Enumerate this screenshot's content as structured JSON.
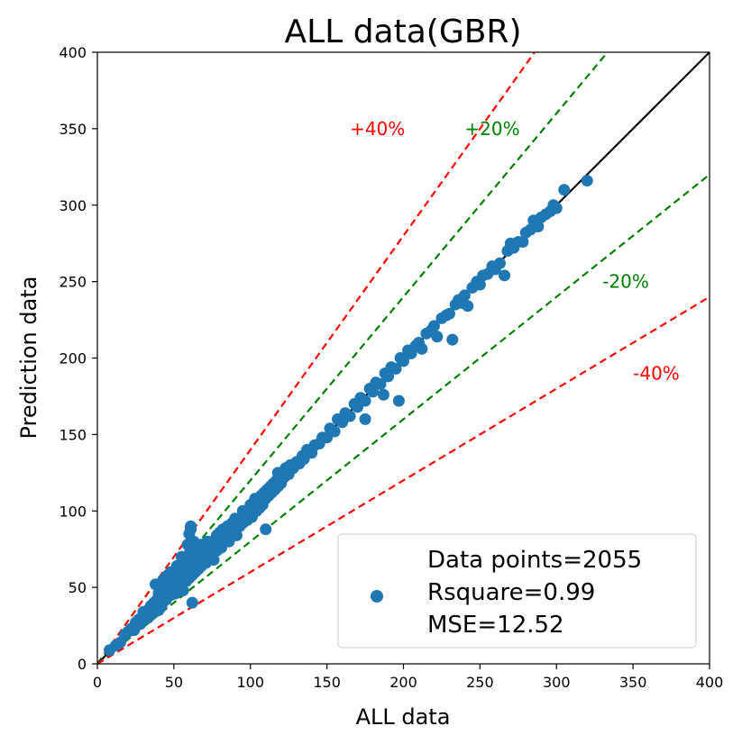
{
  "chart_data": {
    "type": "scatter",
    "title": "ALL data(GBR)",
    "xlabel": "ALL data",
    "ylabel": "Prediction data",
    "xlim": [
      0,
      400
    ],
    "ylim": [
      0,
      400
    ],
    "xticks": [
      0,
      50,
      100,
      150,
      200,
      250,
      300,
      350,
      400
    ],
    "yticks": [
      0,
      50,
      100,
      150,
      200,
      250,
      300,
      350,
      400
    ],
    "grid": false,
    "legend_position": "bottom-right",
    "legend_lines": [
      "Data points=2055",
      "Rsquare=0.99",
      "MSE=12.52"
    ],
    "point_color": "#1f77b4",
    "reference_lines": [
      {
        "label": "+40%",
        "slope": 1.4,
        "color": "#ff0000",
        "style": "dashed",
        "label_at": [
          165,
          350
        ]
      },
      {
        "label": "+20%",
        "slope": 1.2,
        "color": "#008000",
        "style": "dashed",
        "label_at": [
          240,
          350
        ]
      },
      {
        "label": "",
        "slope": 1.0,
        "color": "#000000",
        "style": "solid"
      },
      {
        "label": "-20%",
        "slope": 0.8,
        "color": "#008000",
        "style": "dashed",
        "label_at": [
          330,
          250
        ]
      },
      {
        "label": "-40%",
        "slope": 0.6,
        "color": "#ff0000",
        "style": "dashed",
        "label_at": [
          350,
          190
        ]
      }
    ],
    "series": [
      {
        "points": [
          [
            8,
            9
          ],
          [
            12,
            12
          ],
          [
            15,
            14
          ],
          [
            18,
            19
          ],
          [
            20,
            21
          ],
          [
            22,
            23
          ],
          [
            24,
            22
          ],
          [
            25,
            27
          ],
          [
            27,
            29
          ],
          [
            28,
            26
          ],
          [
            30,
            31
          ],
          [
            30,
            34
          ],
          [
            32,
            33
          ],
          [
            33,
            30
          ],
          [
            34,
            36
          ],
          [
            35,
            38
          ],
          [
            36,
            33
          ],
          [
            37,
            40
          ],
          [
            38,
            36
          ],
          [
            38,
            52
          ],
          [
            40,
            42
          ],
          [
            40,
            46
          ],
          [
            40,
            35
          ],
          [
            42,
            45
          ],
          [
            42,
            38
          ],
          [
            43,
            55
          ],
          [
            44,
            48
          ],
          [
            45,
            42
          ],
          [
            45,
            52
          ],
          [
            46,
            58
          ],
          [
            47,
            50
          ],
          [
            48,
            45
          ],
          [
            48,
            60
          ],
          [
            50,
            52
          ],
          [
            50,
            48
          ],
          [
            50,
            56
          ],
          [
            51,
            46
          ],
          [
            52,
            55
          ],
          [
            52,
            64
          ],
          [
            53,
            50
          ],
          [
            54,
            58
          ],
          [
            55,
            52
          ],
          [
            55,
            62
          ],
          [
            55,
            70
          ],
          [
            56,
            48
          ],
          [
            57,
            60
          ],
          [
            58,
            66
          ],
          [
            58,
            54
          ],
          [
            59,
            78
          ],
          [
            60,
            62
          ],
          [
            60,
            56
          ],
          [
            60,
            72
          ],
          [
            60,
            85
          ],
          [
            61,
            88
          ],
          [
            61,
            90
          ],
          [
            62,
            64
          ],
          [
            62,
            58
          ],
          [
            62,
            40
          ],
          [
            63,
            68
          ],
          [
            63,
            80
          ],
          [
            64,
            60
          ],
          [
            65,
            66
          ],
          [
            65,
            74
          ],
          [
            66,
            62
          ],
          [
            67,
            70
          ],
          [
            68,
            64
          ],
          [
            68,
            78
          ],
          [
            69,
            72
          ],
          [
            70,
            68
          ],
          [
            70,
            75
          ],
          [
            71,
            66
          ],
          [
            72,
            72
          ],
          [
            72,
            80
          ],
          [
            73,
            70
          ],
          [
            74,
            76
          ],
          [
            75,
            72
          ],
          [
            75,
            80
          ],
          [
            76,
            68
          ],
          [
            77,
            78
          ],
          [
            78,
            74
          ],
          [
            78,
            84
          ],
          [
            79,
            80
          ],
          [
            80,
            78
          ],
          [
            80,
            86
          ],
          [
            81,
            76
          ],
          [
            82,
            82
          ],
          [
            82,
            88
          ],
          [
            83,
            80
          ],
          [
            84,
            85
          ],
          [
            85,
            82
          ],
          [
            85,
            90
          ],
          [
            86,
            80
          ],
          [
            87,
            88
          ],
          [
            88,
            85
          ],
          [
            88,
            92
          ],
          [
            89,
            90
          ],
          [
            90,
            87
          ],
          [
            90,
            95
          ],
          [
            91,
            84
          ],
          [
            92,
            92
          ],
          [
            93,
            90
          ],
          [
            94,
            96
          ],
          [
            95,
            92
          ],
          [
            95,
            100
          ],
          [
            96,
            94
          ],
          [
            97,
            98
          ],
          [
            98,
            94
          ],
          [
            99,
            100
          ],
          [
            100,
            98
          ],
          [
            100,
            104
          ],
          [
            101,
            96
          ],
          [
            102,
            102
          ],
          [
            103,
            108
          ],
          [
            104,
            100
          ],
          [
            105,
            106
          ],
          [
            106,
            102
          ],
          [
            107,
            110
          ],
          [
            108,
            104
          ],
          [
            109,
            112
          ],
          [
            110,
            108
          ],
          [
            110,
            88
          ],
          [
            111,
            114
          ],
          [
            112,
            110
          ],
          [
            113,
            116
          ],
          [
            114,
            112
          ],
          [
            115,
            118
          ],
          [
            116,
            114
          ],
          [
            117,
            120
          ],
          [
            118,
            116
          ],
          [
            118,
            125
          ],
          [
            120,
            118
          ],
          [
            120,
            124
          ],
          [
            122,
            122
          ],
          [
            123,
            128
          ],
          [
            125,
            124
          ],
          [
            126,
            130
          ],
          [
            128,
            128
          ],
          [
            130,
            132
          ],
          [
            132,
            131
          ],
          [
            134,
            136
          ],
          [
            135,
            134
          ],
          [
            137,
            140
          ],
          [
            140,
            138
          ],
          [
            142,
            143
          ],
          [
            145,
            144
          ],
          [
            147,
            148
          ],
          [
            150,
            148
          ],
          [
            152,
            154
          ],
          [
            155,
            152
          ],
          [
            157,
            160
          ],
          [
            160,
            158
          ],
          [
            162,
            164
          ],
          [
            165,
            162
          ],
          [
            168,
            170
          ],
          [
            170,
            168
          ],
          [
            172,
            174
          ],
          [
            175,
            172
          ],
          [
            175,
            160
          ],
          [
            178,
            180
          ],
          [
            180,
            178
          ],
          [
            182,
            184
          ],
          [
            185,
            183
          ],
          [
            187,
            176
          ],
          [
            188,
            190
          ],
          [
            190,
            188
          ],
          [
            192,
            194
          ],
          [
            195,
            193
          ],
          [
            197,
            172
          ],
          [
            198,
            200
          ],
          [
            200,
            198
          ],
          [
            203,
            205
          ],
          [
            205,
            203
          ],
          [
            208,
            208
          ],
          [
            210,
            210
          ],
          [
            212,
            206
          ],
          [
            215,
            216
          ],
          [
            218,
            218
          ],
          [
            220,
            221
          ],
          [
            222,
            214
          ],
          [
            225,
            226
          ],
          [
            228,
            228
          ],
          [
            230,
            229
          ],
          [
            232,
            212
          ],
          [
            234,
            235
          ],
          [
            236,
            238
          ],
          [
            238,
            236
          ],
          [
            240,
            241
          ],
          [
            242,
            234
          ],
          [
            245,
            246
          ],
          [
            248,
            250
          ],
          [
            250,
            248
          ],
          [
            252,
            254
          ],
          [
            255,
            255
          ],
          [
            258,
            260
          ],
          [
            260,
            258
          ],
          [
            263,
            262
          ],
          [
            266,
            254
          ],
          [
            268,
            270
          ],
          [
            270,
            275
          ],
          [
            272,
            272
          ],
          [
            275,
            276
          ],
          [
            278,
            276
          ],
          [
            280,
            282
          ],
          [
            283,
            284
          ],
          [
            285,
            290
          ],
          [
            288,
            286
          ],
          [
            290,
            292
          ],
          [
            293,
            294
          ],
          [
            296,
            296
          ],
          [
            298,
            300
          ],
          [
            300,
            298
          ],
          [
            305,
            310
          ],
          [
            320,
            316
          ]
        ]
      }
    ]
  }
}
